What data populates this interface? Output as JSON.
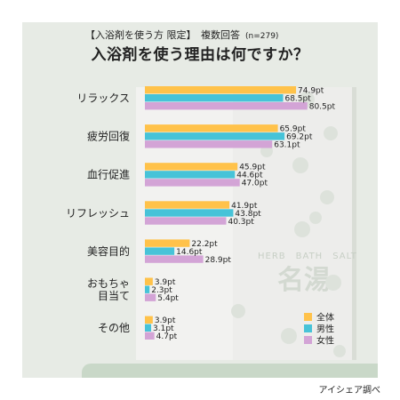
{
  "header": {
    "subtitle": "【入浴剤を使う方 限定】　複数回答",
    "sample": "(n=279)",
    "title": "入浴剤を使う理由は何ですか？"
  },
  "decoration": {
    "brand_line": "HERB　BATH　SALT",
    "brand_kanji": "名湯"
  },
  "source": "アイシェア調べ",
  "colors": {
    "overall": "#ffc24a",
    "male": "#47c3d8",
    "female": "#d3a4d6"
  },
  "chart_data": {
    "type": "bar",
    "orientation": "horizontal",
    "categories": [
      "リラックス",
      "疲労回復",
      "血行促進",
      "リフレッシュ",
      "美容目的",
      "おもちゃ\n目当て",
      "その他"
    ],
    "unit": "pt",
    "series": [
      {
        "name": "全体",
        "values": [
          74.9,
          65.9,
          45.9,
          41.9,
          22.2,
          3.9,
          3.9
        ]
      },
      {
        "name": "男性",
        "values": [
          68.5,
          69.2,
          44.6,
          43.8,
          14.6,
          2.3,
          3.1
        ]
      },
      {
        "name": "女性",
        "values": [
          80.5,
          63.1,
          47.0,
          40.3,
          28.9,
          5.4,
          4.7
        ]
      }
    ],
    "xlim": [
      0,
      100
    ],
    "legend_position": "bottom-right"
  }
}
